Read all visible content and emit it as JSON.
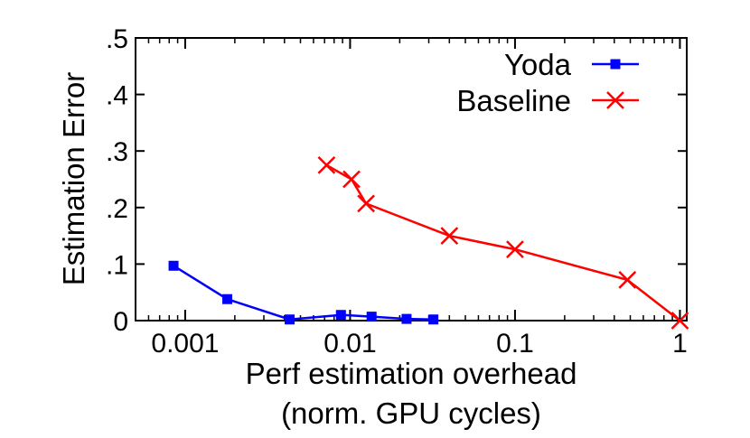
{
  "chart_data": {
    "type": "line",
    "xscale": "log",
    "xlim": [
      0.0005,
      1.1
    ],
    "ylim": [
      0,
      0.5
    ],
    "xticks": [
      {
        "value": 0.001,
        "label": "0.001"
      },
      {
        "value": 0.01,
        "label": "0.01"
      },
      {
        "value": 0.1,
        "label": "0.1"
      },
      {
        "value": 1,
        "label": "1"
      }
    ],
    "yticks": [
      {
        "value": 0,
        "label": "0"
      },
      {
        "value": 0.1,
        "label": ".1"
      },
      {
        "value": 0.2,
        "label": ".2"
      },
      {
        "value": 0.3,
        "label": ".3"
      },
      {
        "value": 0.4,
        "label": ".4"
      },
      {
        "value": 0.5,
        "label": ".5"
      }
    ],
    "xlabel_line1": "Perf estimation overhead",
    "xlabel_line2": "(norm. GPU cycles)",
    "ylabel": "Estimation Error",
    "grid": false,
    "legend_position": "top-right",
    "series": [
      {
        "name": "Yoda",
        "color": "#0000ff",
        "marker": "square",
        "x": [
          0.00085,
          0.0018,
          0.0043,
          0.0088,
          0.0135,
          0.022,
          0.032
        ],
        "y": [
          0.097,
          0.038,
          0.002,
          0.01,
          0.007,
          0.003,
          0.002
        ]
      },
      {
        "name": "Baseline",
        "color": "#ff0000",
        "marker": "cross",
        "x": [
          0.0072,
          0.0102,
          0.0125,
          0.04,
          0.1,
          0.48,
          1.0
        ],
        "y": [
          0.275,
          0.25,
          0.207,
          0.15,
          0.126,
          0.072,
          0.0
        ]
      }
    ]
  }
}
